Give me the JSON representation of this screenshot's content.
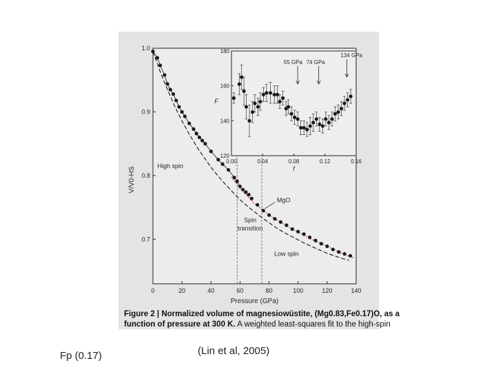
{
  "page": {
    "left_caption": "Fp (0.17)",
    "right_caption": "(Lin et al, 2005)"
  },
  "figure_caption": {
    "label": "Figure 2 | Normalized volume of magnesiowüstite, (Mg0.83,Fe0.17)O, as a",
    "line2_bold": "function of pressure at 300 K.",
    "line2_rest": " A weighted least-squares fit to the high-spin"
  },
  "chart_data": [
    {
      "type": "scatter",
      "xlabel": "Pressure (GPa)",
      "ylabel": "V/V0-HS",
      "xlim": [
        0,
        140
      ],
      "ylim": [
        0.63,
        1.0
      ],
      "x_ticks": [
        0,
        20,
        40,
        60,
        80,
        100,
        120,
        140
      ],
      "y_ticks": [
        0.7,
        0.8,
        0.9,
        1.0
      ],
      "grid": false,
      "annotations": [
        {
          "text": "High spin",
          "x": 12,
          "y": 0.812
        },
        {
          "text": "MgO",
          "x": 90,
          "y": 0.758
        },
        {
          "text": "Spin",
          "x": 67,
          "y": 0.727
        },
        {
          "text": "transition",
          "x": 67,
          "y": 0.714
        },
        {
          "text": "Low spin",
          "x": 92,
          "y": 0.674
        }
      ],
      "spin_transition_lines": [
        58,
        75
      ],
      "series": [
        {
          "x": [
            0,
            3,
            5,
            8,
            10,
            12,
            14,
            16,
            18,
            20,
            22,
            25,
            28,
            30,
            32,
            34,
            36,
            40,
            45,
            48,
            52,
            56,
            58,
            60,
            62,
            64,
            66,
            68,
            72,
            76,
            80,
            84,
            88,
            92,
            96,
            100,
            104,
            108,
            112,
            116,
            120,
            124,
            128,
            132,
            136
          ],
          "y": [
            0.995,
            0.985,
            0.973,
            0.958,
            0.944,
            0.935,
            0.928,
            0.918,
            0.908,
            0.9,
            0.893,
            0.882,
            0.873,
            0.866,
            0.86,
            0.855,
            0.85,
            0.838,
            0.825,
            0.818,
            0.809,
            0.797,
            0.791,
            0.783,
            0.778,
            0.774,
            0.77,
            0.764,
            0.754,
            0.745,
            0.738,
            0.732,
            0.727,
            0.722,
            0.716,
            0.712,
            0.708,
            0.703,
            0.698,
            0.693,
            0.689,
            0.684,
            0.68,
            0.677,
            0.674
          ]
        },
        {
          "y": [
            0.995,
            0.963,
            0.935,
            0.909,
            0.886,
            0.865,
            0.846,
            0.829,
            0.813,
            0.799,
            0.786,
            0.774,
            0.762,
            0.752,
            0.743,
            0.734,
            0.726,
            0.718,
            0.711,
            0.705,
            0.699,
            0.693,
            0.688,
            0.683,
            0.678,
            0.674,
            0.67,
            0.667
          ],
          "x": [
            0,
            5,
            10,
            15,
            20,
            25,
            30,
            35,
            40,
            45,
            50,
            55,
            60,
            65,
            70,
            75,
            80,
            85,
            90,
            95,
            100,
            105,
            110,
            115,
            120,
            125,
            130,
            135
          ]
        },
        {
          "x": [
            54,
            60,
            70,
            80,
            90,
            100,
            110,
            120,
            130,
            138
          ],
          "y": [
            0.798,
            0.78,
            0.756,
            0.738,
            0.724,
            0.711,
            0.699,
            0.689,
            0.678,
            0.671
          ]
        }
      ]
    },
    {
      "type": "scatter",
      "xlabel": "f",
      "ylabel": "F",
      "xlim": [
        0.0,
        0.16
      ],
      "ylim": [
        120,
        180
      ],
      "x_ticks": [
        0.0,
        0.04,
        0.08,
        0.12,
        0.16
      ],
      "y_ticks": [
        120,
        140,
        160,
        180
      ],
      "annotations": [
        {
          "text": "55 GPa",
          "x": 0.079
        },
        {
          "text": "74 GPa",
          "x": 0.108
        },
        {
          "text": "134 GPa",
          "x": 0.154
        }
      ],
      "series": [
        {
          "x": [
            0.003,
            0.01,
            0.013,
            0.016,
            0.019,
            0.023,
            0.027,
            0.03,
            0.034,
            0.037,
            0.041,
            0.045,
            0.05,
            0.055,
            0.059,
            0.062,
            0.066,
            0.07,
            0.073,
            0.077,
            0.081,
            0.085,
            0.089,
            0.093,
            0.097,
            0.101,
            0.105,
            0.109,
            0.113,
            0.117,
            0.121,
            0.125,
            0.129,
            0.133,
            0.137,
            0.141,
            0.145,
            0.149,
            0.153
          ],
          "y": [
            153,
            161,
            165,
            157,
            148,
            140,
            145,
            150,
            148,
            151,
            155,
            156,
            156,
            155,
            155,
            151,
            153,
            147,
            148,
            144,
            142,
            141,
            136,
            136,
            135,
            137,
            139,
            141,
            138,
            137,
            141,
            139,
            141,
            144,
            145,
            147,
            150,
            152,
            154
          ],
          "err": [
            3,
            6,
            7,
            8,
            7,
            9,
            6,
            5,
            5,
            5,
            4,
            5,
            6,
            5,
            5,
            4,
            4,
            4,
            4,
            4,
            4,
            4,
            4,
            4,
            4,
            5,
            5,
            4,
            4,
            4,
            4,
            4,
            4,
            4,
            4,
            4,
            4,
            4,
            4
          ]
        }
      ]
    }
  ]
}
